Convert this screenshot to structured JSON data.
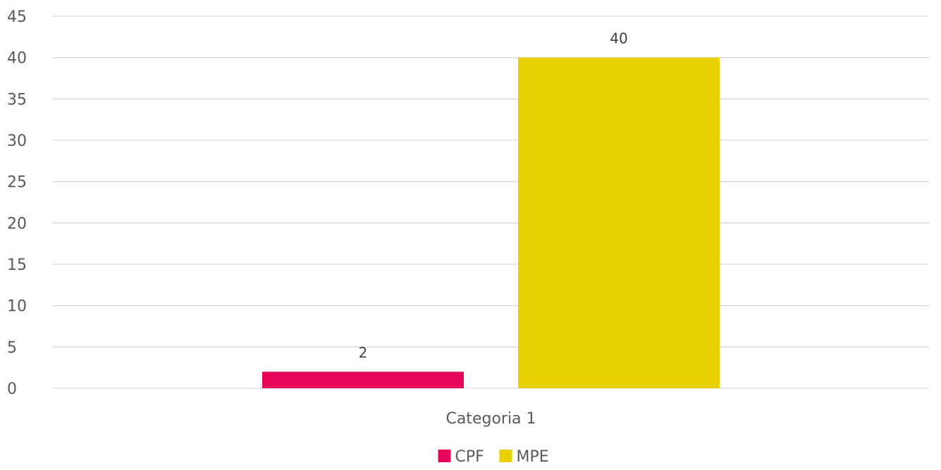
{
  "chart_data": {
    "type": "bar",
    "categories": [
      "Categoria 1"
    ],
    "series": [
      {
        "name": "CPF",
        "values": [
          2
        ],
        "color": "#E8065A"
      },
      {
        "name": "MPE",
        "values": [
          40
        ],
        "color": "#E8D100"
      }
    ],
    "title": "",
    "xlabel": "",
    "ylabel": "",
    "ylim": [
      0,
      45
    ],
    "yticks": [
      0,
      5,
      10,
      15,
      20,
      25,
      30,
      35,
      40,
      45
    ],
    "grid": true,
    "legend": "bottom",
    "data_labels": true
  }
}
